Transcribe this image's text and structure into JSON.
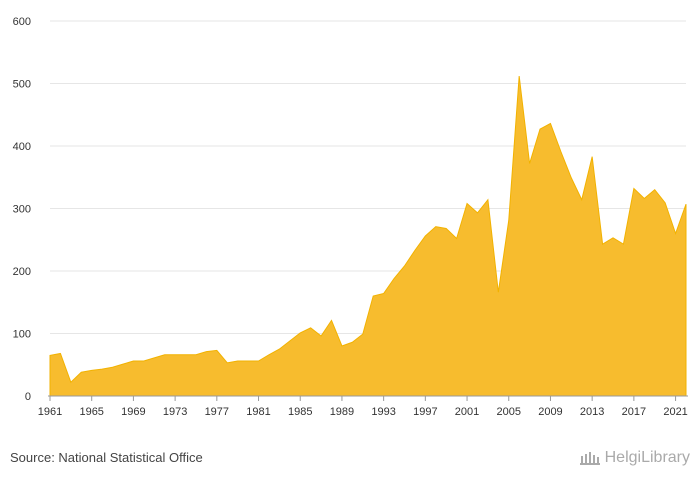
{
  "footer": {
    "source": "Source: National Statistical Office",
    "brand": "HelgiLibrary",
    "brand_icon": "library-building-icon"
  },
  "chart_data": {
    "type": "area",
    "title": "",
    "xlabel": "",
    "ylabel": "",
    "xlim": [
      1961,
      2022
    ],
    "ylim": [
      0,
      600
    ],
    "grid": true,
    "legend": "none",
    "x_ticks": [
      "1961",
      "1965",
      "1969",
      "1973",
      "1977",
      "1981",
      "1985",
      "1989",
      "1993",
      "1997",
      "2001",
      "2005",
      "2009",
      "2013",
      "2017",
      "2021"
    ],
    "y_ticks": [
      "0",
      "100",
      "200",
      "300",
      "400",
      "500",
      "600"
    ],
    "color": "#F7BC2E",
    "x": [
      1961,
      1962,
      1963,
      1964,
      1965,
      1966,
      1967,
      1968,
      1969,
      1970,
      1971,
      1972,
      1973,
      1974,
      1975,
      1976,
      1977,
      1978,
      1979,
      1980,
      1981,
      1982,
      1983,
      1984,
      1985,
      1986,
      1987,
      1988,
      1989,
      1990,
      1991,
      1992,
      1993,
      1994,
      1995,
      1996,
      1997,
      1998,
      1999,
      2000,
      2001,
      2002,
      2003,
      2004,
      2005,
      2006,
      2007,
      2008,
      2009,
      2010,
      2011,
      2012,
      2013,
      2014,
      2015,
      2016,
      2017,
      2018,
      2019,
      2020,
      2021,
      2022
    ],
    "values": [
      65,
      68,
      22,
      38,
      41,
      43,
      46,
      51,
      56,
      56,
      61,
      66,
      66,
      66,
      66,
      71,
      73,
      53,
      56,
      56,
      56,
      66,
      75,
      88,
      101,
      109,
      96,
      121,
      80,
      86,
      99,
      160,
      164,
      188,
      208,
      233,
      256,
      271,
      268,
      252,
      308,
      293,
      314,
      166,
      281,
      512,
      372,
      427,
      436,
      391,
      349,
      314,
      383,
      243,
      253,
      243,
      332,
      316,
      330,
      309,
      260,
      307
    ]
  }
}
